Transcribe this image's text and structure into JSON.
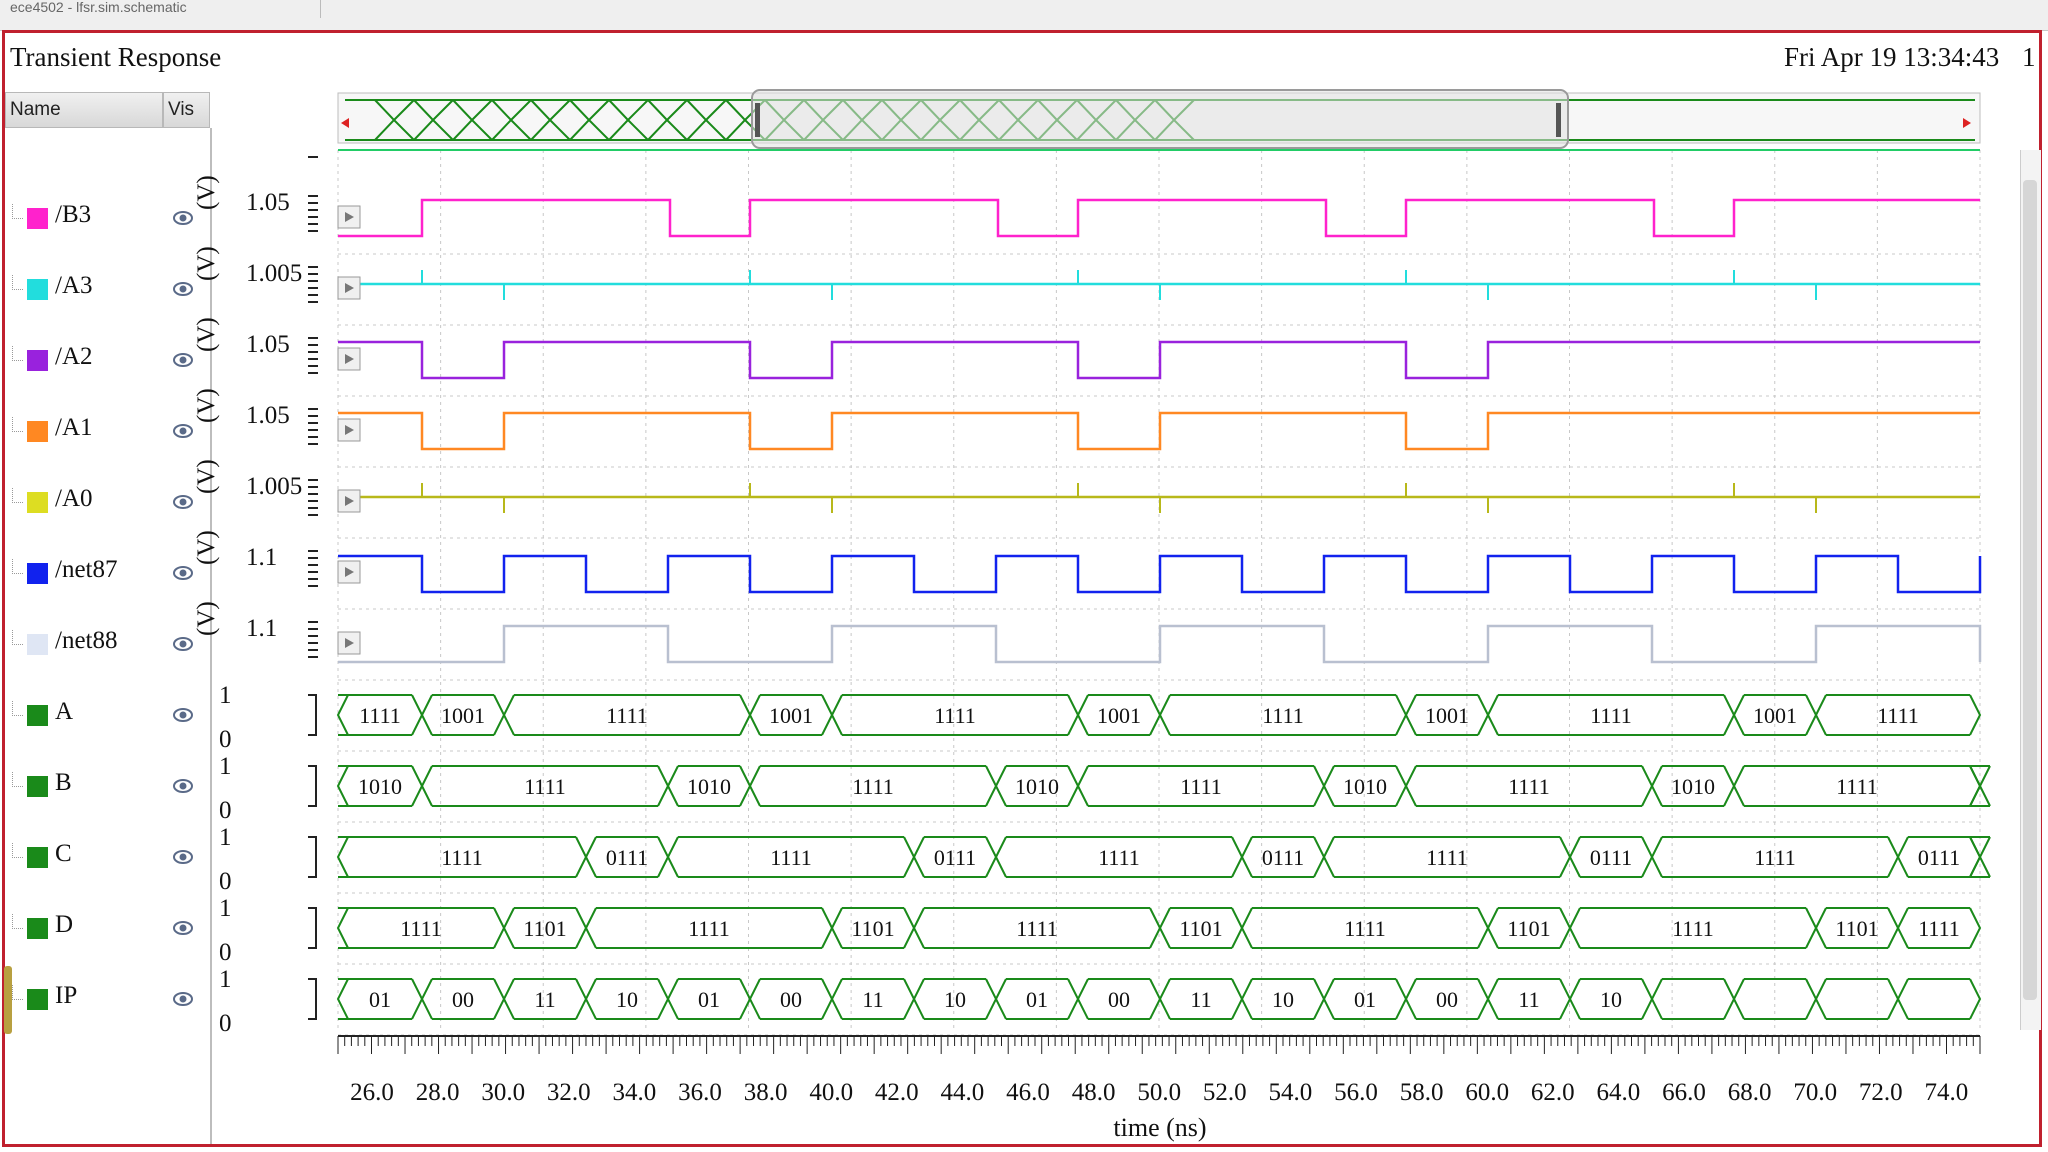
{
  "window": {
    "tab_title": "ece4502 - lfsr.sim.schematic",
    "title": "Transient Response",
    "datetime": "Fri Apr 19 13:34:43",
    "page_number": "1"
  },
  "table_header": {
    "name": "Name",
    "vis": "Vis"
  },
  "signals": [
    {
      "name": "/B3",
      "color": "#ff22cc",
      "axis_label": "(V)",
      "top_value": "1.05"
    },
    {
      "name": "/A3",
      "color": "#22dddd",
      "axis_label": "(V)",
      "top_value": "1.005"
    },
    {
      "name": "/A2",
      "color": "#9922dd",
      "axis_label": "(V)",
      "top_value": "1.05"
    },
    {
      "name": "/A1",
      "color": "#ff8822",
      "axis_label": "(V)",
      "top_value": "1.05"
    },
    {
      "name": "/A0",
      "color": "#dddd22",
      "axis_label": "(V)",
      "top_value": "1.005"
    },
    {
      "name": "/net87",
      "color": "#1122ee",
      "axis_label": "(V)",
      "top_value": "1.1"
    },
    {
      "name": "/net88",
      "color": "#dfe6f4",
      "axis_label": "(V)",
      "top_value": "1.1"
    },
    {
      "name": "A",
      "color": "#1a8a1a",
      "top_value": "1",
      "bottom_value": "0"
    },
    {
      "name": "B",
      "color": "#1a8a1a",
      "top_value": "1",
      "bottom_value": "0"
    },
    {
      "name": "C",
      "color": "#1a8a1a",
      "top_value": "1",
      "bottom_value": "0"
    },
    {
      "name": "D",
      "color": "#1a8a1a",
      "top_value": "1",
      "bottom_value": "0"
    },
    {
      "name": "IP",
      "color": "#1a8a1a",
      "top_value": "1",
      "bottom_value": "0"
    }
  ],
  "bus_values": {
    "A": [
      "1111",
      "1001",
      "1111",
      "1001",
      "1111",
      "1001",
      "1111",
      "1001",
      "1111",
      "1001",
      "1111"
    ],
    "B": [
      "1010",
      "1111",
      "1010",
      "1111",
      "1010",
      "1111",
      "1010",
      "1111",
      "1010",
      "1111"
    ],
    "C": [
      "1111",
      "0111",
      "1111",
      "0111",
      "1111",
      "0111",
      "1111",
      "0111",
      "1111",
      "0111"
    ],
    "D": [
      "1111",
      "1101",
      "1111",
      "1101",
      "1111",
      "1101",
      "1111",
      "1101",
      "1111",
      "1101",
      "1111"
    ],
    "IP": [
      "01",
      "00",
      "11",
      "10",
      "01",
      "00",
      "11",
      "10",
      "01",
      "00",
      "11",
      "10",
      "01",
      "00",
      "11",
      "10"
    ]
  },
  "x_axis": {
    "label": "time (ns)",
    "ticks": [
      "26.0",
      "28.0",
      "30.0",
      "32.0",
      "34.0",
      "36.0",
      "38.0",
      "40.0",
      "42.0",
      "44.0",
      "46.0",
      "48.0",
      "50.0",
      "52.0",
      "54.0",
      "56.0",
      "58.0",
      "60.0",
      "62.0",
      "64.0",
      "66.0",
      "68.0",
      "70.0",
      "72.0",
      "74.0"
    ]
  },
  "colors": {
    "frame": "#c0202e",
    "bus": "#1a8a1a",
    "grid": "#c8c8c8"
  }
}
